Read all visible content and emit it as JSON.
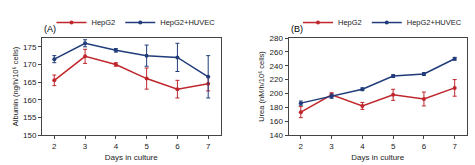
{
  "chart_data": [
    {
      "type": "line",
      "title": "(A)",
      "x_label": "Days in culture",
      "y_label": "Albumin (ng/h/10⁶ cells)",
      "x": [
        2,
        3,
        4,
        5,
        6,
        7
      ],
      "xlim": [
        1.6,
        7.4
      ],
      "xticks": [
        2,
        3,
        4,
        5,
        6,
        7
      ],
      "ylim": [
        150,
        177.5
      ],
      "yticks": [
        150,
        155,
        160,
        165,
        170,
        175
      ],
      "grid": false,
      "legend": "top right",
      "marker": "circle",
      "series": [
        {
          "name": "HepG2",
          "color": "#c0272d",
          "values": [
            165.5,
            172.3,
            170,
            166,
            163,
            164.5
          ],
          "errors": [
            1.5,
            2,
            0.5,
            3,
            2.5,
            2
          ]
        },
        {
          "name": "HepG2+HUVEC",
          "color": "#203c7a",
          "values": [
            171.5,
            176,
            174,
            172.5,
            172,
            166.5
          ],
          "errors": [
            1,
            1,
            0.5,
            3,
            4,
            6
          ]
        }
      ]
    },
    {
      "type": "line",
      "title": "(B)",
      "x_label": "Days in culture",
      "y_label": "Urea (nM/h/10⁶ cells)",
      "x": [
        2,
        3,
        4,
        5,
        6,
        7
      ],
      "xlim": [
        1.6,
        7.4
      ],
      "xticks": [
        2,
        3,
        4,
        5,
        6,
        7
      ],
      "ylim": [
        140,
        280
      ],
      "yticks": [
        140,
        160,
        180,
        200,
        220,
        240,
        260,
        280
      ],
      "grid": false,
      "legend": "top right",
      "marker": "circle",
      "series": [
        {
          "name": "HepG2",
          "color": "#c0272d",
          "values": [
            173,
            198,
            182,
            198,
            192,
            208
          ],
          "errors": [
            8,
            3,
            5,
            8,
            10,
            12
          ]
        },
        {
          "name": "HepG2+HUVEC",
          "color": "#203c7a",
          "values": [
            186,
            196,
            206,
            225,
            228,
            250
          ],
          "errors": [
            3,
            3,
            2,
            2,
            2,
            2
          ]
        }
      ]
    }
  ]
}
